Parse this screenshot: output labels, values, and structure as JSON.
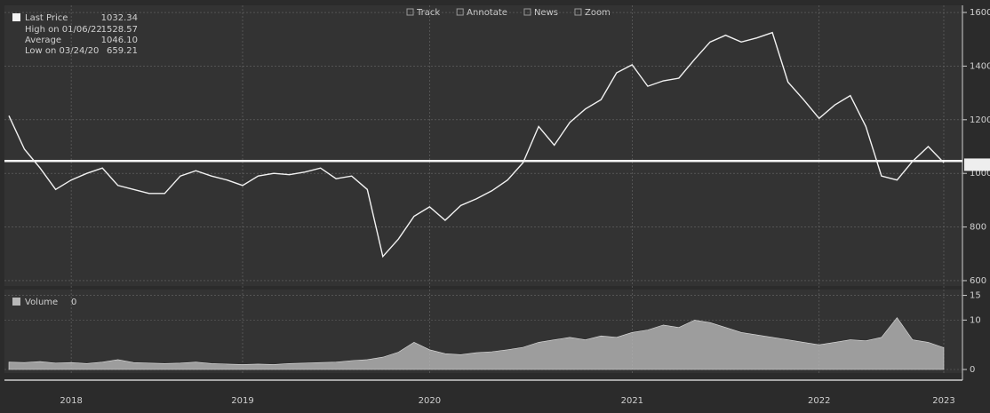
{
  "toolbar": [
    "Track",
    "Annotate",
    "News",
    "Zoom"
  ],
  "chart_data": [
    {
      "type": "line",
      "categories": [
        null,
        null,
        null,
        null,
        "2018",
        null,
        null,
        null,
        null,
        null,
        null,
        null,
        null,
        null,
        null,
        "2019",
        null,
        null,
        null,
        null,
        null,
        null,
        null,
        null,
        null,
        null,
        null,
        "2020",
        null,
        null,
        null,
        null,
        null,
        null,
        null,
        null,
        null,
        null,
        null,
        null,
        "2021",
        null,
        null,
        null,
        null,
        null,
        null,
        null,
        null,
        null,
        null,
        null,
        "2022",
        null,
        null,
        null,
        null,
        null,
        null,
        null,
        "2023"
      ],
      "series": [
        {
          "name": "Last Price",
          "color": "#f2f2f2",
          "values": [
            1215,
            1090,
            1020,
            940,
            975,
            1000,
            1020,
            955,
            940,
            925,
            925,
            990,
            1010,
            990,
            975,
            955,
            990,
            1000,
            995,
            1005,
            1020,
            980,
            990,
            940,
            690,
            755,
            840,
            875,
            825,
            880,
            905,
            935,
            975,
            1040,
            1175,
            1105,
            1190,
            1240,
            1275,
            1375,
            1405,
            1325,
            1345,
            1355,
            1425,
            1490,
            1515,
            1490,
            1505,
            1525,
            1340,
            1275,
            1205,
            1255,
            1290,
            1175,
            990,
            975,
            1045,
            1100,
            1040
          ]
        }
      ],
      "last_value": 1032.34,
      "stats": [
        {
          "label": "High on 01/06/22",
          "value": 1528.57
        },
        {
          "label": "Average",
          "value": {
            "value": 1046.1,
            "label": "1046.10"
          }
        },
        {
          "label": "Low on 03/24/20",
          "value": 659.21
        }
      ],
      "ylim": [
        580,
        1620
      ],
      "yticks": [
        600,
        800,
        1000,
        1200,
        1400,
        1600
      ],
      "grid": true
    },
    {
      "type": "area",
      "series": [
        {
          "name": "Volume",
          "color": "#b8b8b8",
          "values": [
            1.5,
            1.4,
            1.6,
            1.3,
            1.4,
            1.2,
            1.5,
            2.0,
            1.4,
            1.3,
            1.2,
            1.3,
            1.5,
            1.2,
            1.1,
            1.0,
            1.1,
            1.0,
            1.2,
            1.3,
            1.4,
            1.5,
            1.8,
            2.0,
            2.5,
            3.5,
            5.5,
            4.0,
            3.2,
            3.0,
            3.4,
            3.6,
            4.0,
            4.5,
            5.5,
            6.0,
            6.5,
            6.0,
            6.8,
            6.5,
            7.5,
            8.0,
            9.0,
            8.5,
            10.0,
            9.5,
            8.5,
            7.5,
            7.0,
            6.5,
            6.0,
            5.5,
            5.0,
            5.5,
            6.0,
            5.8,
            6.5,
            10.5,
            6.0,
            5.5,
            4.4
          ]
        }
      ],
      "legend_value": 0,
      "ylim": [
        0,
        16
      ],
      "yticks": [
        0,
        10,
        15
      ],
      "grid": true
    }
  ]
}
